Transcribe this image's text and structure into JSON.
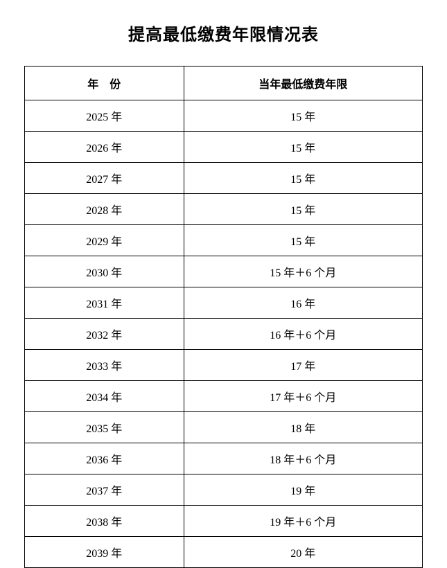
{
  "title": "提高最低缴费年限情况表",
  "table": {
    "columns": [
      "年　份",
      "当年最低缴费年限"
    ],
    "rows": [
      [
        "2025 年",
        "15 年"
      ],
      [
        "2026 年",
        "15 年"
      ],
      [
        "2027 年",
        "15 年"
      ],
      [
        "2028 年",
        "15 年"
      ],
      [
        "2029 年",
        "15 年"
      ],
      [
        "2030 年",
        "15 年＋6 个月"
      ],
      [
        "2031 年",
        "16 年"
      ],
      [
        "2032 年",
        "16 年＋6 个月"
      ],
      [
        "2033 年",
        "17 年"
      ],
      [
        "2034 年",
        "17 年＋6 个月"
      ],
      [
        "2035 年",
        "18 年"
      ],
      [
        "2036 年",
        "18 年＋6 个月"
      ],
      [
        "2037 年",
        "19 年"
      ],
      [
        "2038 年",
        "19 年＋6 个月"
      ],
      [
        "2039 年",
        "20 年"
      ]
    ],
    "border_color": "#000000",
    "background_color": "#ffffff",
    "title_fontsize": 24,
    "header_fontsize": 16,
    "cell_fontsize": 16
  }
}
